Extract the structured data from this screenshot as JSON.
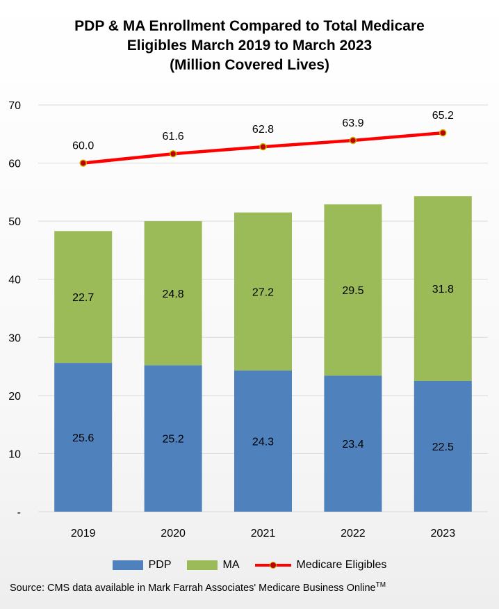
{
  "chart_data": {
    "type": "bar",
    "stacked": true,
    "title_lines": [
      "PDP & MA Enrollment Compared to Total Medicare",
      "Eligibles March 2019 to March 2023",
      "(Million Covered Lives)"
    ],
    "categories": [
      "2019",
      "2020",
      "2021",
      "2022",
      "2023"
    ],
    "series": [
      {
        "name": "PDP",
        "kind": "bar",
        "values": [
          25.6,
          25.2,
          24.3,
          23.4,
          22.5
        ],
        "labels": [
          "25.6",
          "25.2",
          "24.3",
          "23.4",
          "22.5"
        ]
      },
      {
        "name": "MA",
        "kind": "bar",
        "values": [
          22.7,
          24.8,
          27.2,
          29.5,
          31.8
        ],
        "labels": [
          "22.7",
          "24.8",
          "27.2",
          "29.5",
          "31.8"
        ]
      },
      {
        "name": "Medicare Eligibles",
        "kind": "line",
        "values": [
          60.0,
          61.6,
          62.8,
          63.9,
          65.2
        ],
        "labels": [
          "60.0",
          "61.6",
          "62.8",
          "63.9",
          "65.2"
        ]
      }
    ],
    "ylim": [
      0,
      70
    ],
    "yticks": [
      {
        "value": 0,
        "label": "-"
      },
      {
        "value": 10,
        "label": "10"
      },
      {
        "value": 20,
        "label": "20"
      },
      {
        "value": 30,
        "label": "30"
      },
      {
        "value": 40,
        "label": "40"
      },
      {
        "value": 50,
        "label": "50"
      },
      {
        "value": 60,
        "label": "60"
      },
      {
        "value": 70,
        "label": "70"
      }
    ],
    "grid": true,
    "legend_position": "bottom",
    "colors": {
      "PDP": "#4f81bd",
      "MA": "#9bbb59",
      "Medicare Eligibles": "#ff0000",
      "marker_fill": "#c00000",
      "marker_edge": "#c9b400",
      "grid": "#d9d9d9"
    }
  },
  "legend": {
    "pdp_label": "PDP",
    "ma_label": "MA",
    "eligibles_label": "Medicare Eligibles"
  },
  "source": {
    "text": "Source: CMS data available in Mark Farrah Associates' Medicare Business Online",
    "trademark": "TM"
  }
}
